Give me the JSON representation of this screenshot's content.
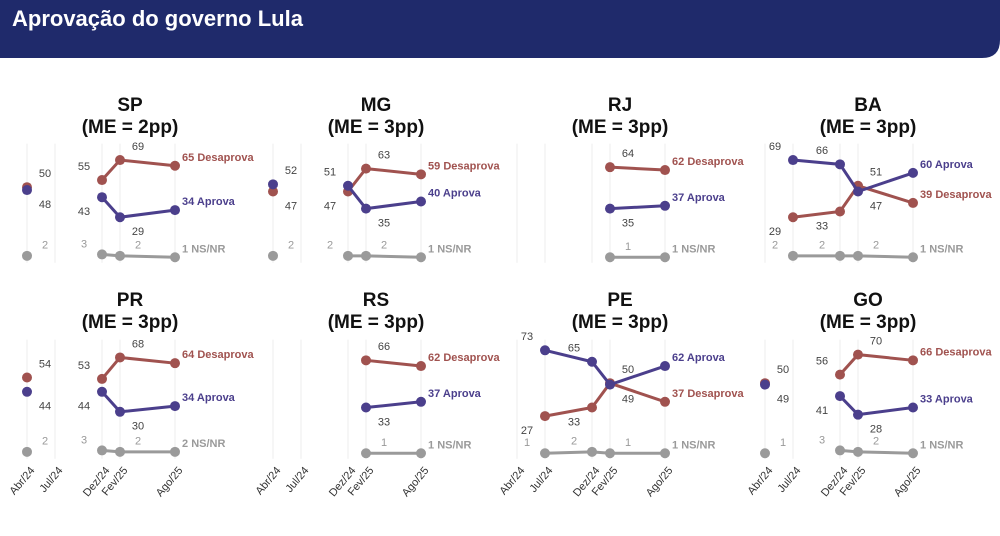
{
  "title": "Aprovação do governo Lula",
  "categories": [
    "Abr/24",
    "Jul/24",
    "Dez/24",
    "Fev/25",
    "Ago/25"
  ],
  "chart_data": [
    {
      "type": "line",
      "title": "SP",
      "subtitle": "(ME = 2pp)",
      "series": [
        {
          "name": "Desaprova",
          "color": "#a0524f",
          "values": [
            50,
            null,
            55,
            69,
            65
          ]
        },
        {
          "name": "Aprova",
          "color": "#4b3f8c",
          "values": [
            48,
            null,
            43,
            29,
            34
          ]
        },
        {
          "name": "NS/NR",
          "color": "#9a9a9a",
          "values": [
            2,
            null,
            3,
            2,
            1
          ]
        }
      ]
    },
    {
      "type": "line",
      "title": "MG",
      "subtitle": "(ME = 3pp)",
      "series": [
        {
          "name": "Desaprova",
          "color": "#a0524f",
          "values": [
            47,
            null,
            47,
            63,
            59
          ]
        },
        {
          "name": "Aprova",
          "color": "#4b3f8c",
          "values": [
            52,
            null,
            51,
            35,
            40
          ]
        },
        {
          "name": "NS/NR",
          "color": "#9a9a9a",
          "values": [
            2,
            null,
            2,
            2,
            1
          ]
        }
      ]
    },
    {
      "type": "line",
      "title": "RJ",
      "subtitle": "(ME = 3pp)",
      "series": [
        {
          "name": "Desaprova",
          "color": "#a0524f",
          "values": [
            null,
            null,
            null,
            64,
            62
          ]
        },
        {
          "name": "Aprova",
          "color": "#4b3f8c",
          "values": [
            null,
            null,
            null,
            35,
            37
          ]
        },
        {
          "name": "NS/NR",
          "color": "#9a9a9a",
          "values": [
            null,
            null,
            null,
            1,
            1
          ]
        }
      ]
    },
    {
      "type": "line",
      "title": "BA",
      "subtitle": "(ME = 3pp)",
      "series": [
        {
          "name": "Desaprova",
          "color": "#a0524f",
          "values": [
            null,
            29,
            33,
            51,
            39
          ]
        },
        {
          "name": "Aprova",
          "color": "#4b3f8c",
          "values": [
            null,
            69,
            66,
            47,
            60
          ]
        },
        {
          "name": "NS/NR",
          "color": "#9a9a9a",
          "values": [
            null,
            2,
            2,
            2,
            1
          ]
        }
      ]
    },
    {
      "type": "line",
      "title": "PR",
      "subtitle": "(ME = 3pp)",
      "series": [
        {
          "name": "Desaprova",
          "color": "#a0524f",
          "values": [
            54,
            null,
            53,
            68,
            64
          ]
        },
        {
          "name": "Aprova",
          "color": "#4b3f8c",
          "values": [
            44,
            null,
            44,
            30,
            34
          ]
        },
        {
          "name": "NS/NR",
          "color": "#9a9a9a",
          "values": [
            2,
            null,
            3,
            2,
            2
          ]
        }
      ]
    },
    {
      "type": "line",
      "title": "RS",
      "subtitle": "(ME = 3pp)",
      "series": [
        {
          "name": "Desaprova",
          "color": "#a0524f",
          "values": [
            null,
            null,
            null,
            66,
            62
          ]
        },
        {
          "name": "Aprova",
          "color": "#4b3f8c",
          "values": [
            null,
            null,
            null,
            33,
            37
          ]
        },
        {
          "name": "NS/NR",
          "color": "#9a9a9a",
          "values": [
            null,
            null,
            null,
            1,
            1
          ]
        }
      ]
    },
    {
      "type": "line",
      "title": "PE",
      "subtitle": "(ME = 3pp)",
      "series": [
        {
          "name": "Desaprova",
          "color": "#a0524f",
          "values": [
            null,
            27,
            33,
            50,
            37
          ]
        },
        {
          "name": "Aprova",
          "color": "#4b3f8c",
          "values": [
            null,
            73,
            65,
            49,
            62
          ]
        },
        {
          "name": "NS/NR",
          "color": "#9a9a9a",
          "values": [
            null,
            1,
            2,
            1,
            1
          ]
        }
      ]
    },
    {
      "type": "line",
      "title": "GO",
      "subtitle": "(ME = 3pp)",
      "series": [
        {
          "name": "Desaprova",
          "color": "#a0524f",
          "values": [
            50,
            null,
            56,
            70,
            66
          ]
        },
        {
          "name": "Aprova",
          "color": "#4b3f8c",
          "values": [
            49,
            null,
            41,
            28,
            33
          ]
        },
        {
          "name": "NS/NR",
          "color": "#9a9a9a",
          "values": [
            1,
            null,
            3,
            2,
            1
          ]
        }
      ]
    }
  ]
}
